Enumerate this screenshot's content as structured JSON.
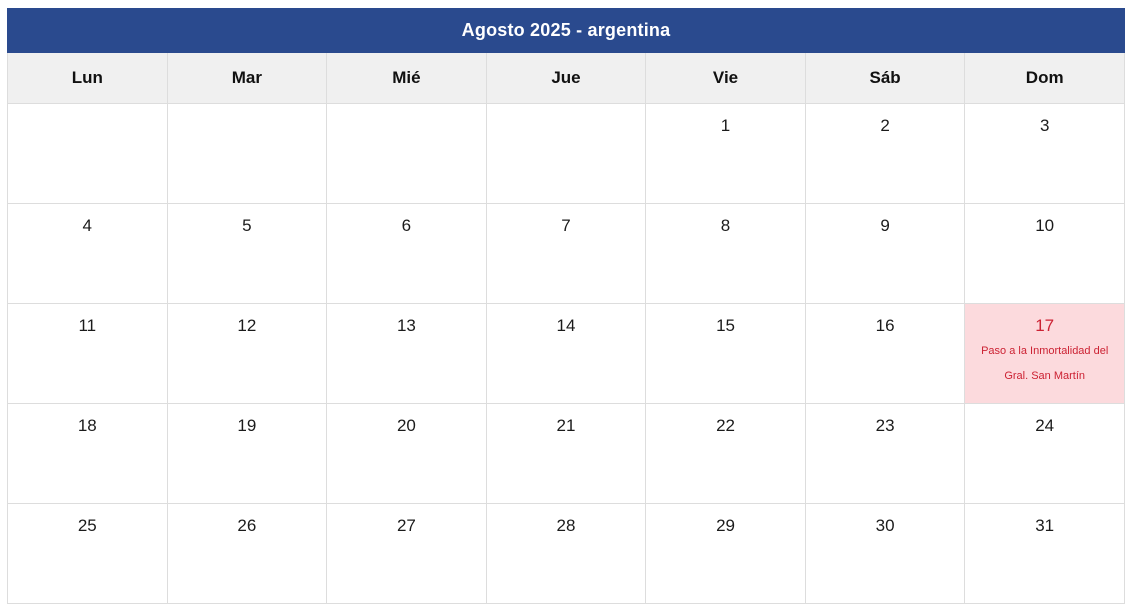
{
  "title": "Agosto 2025 - argentina",
  "colors": {
    "title_bg": "#2a4a8e",
    "title_text": "#ffffff",
    "weekday_bg": "#f0f0f0",
    "weekday_text": "#111111",
    "grid_border": "#dddddd",
    "day_text": "#1b1b1b",
    "holiday_bg": "#fcdadd",
    "holiday_text": "#cc2233"
  },
  "weekdays": [
    "Lun",
    "Mar",
    "Mié",
    "Jue",
    "Vie",
    "Sáb",
    "Dom"
  ],
  "weeks": [
    [
      {
        "day": ""
      },
      {
        "day": ""
      },
      {
        "day": ""
      },
      {
        "day": ""
      },
      {
        "day": "1"
      },
      {
        "day": "2"
      },
      {
        "day": "3"
      }
    ],
    [
      {
        "day": "4"
      },
      {
        "day": "5"
      },
      {
        "day": "6"
      },
      {
        "day": "7"
      },
      {
        "day": "8"
      },
      {
        "day": "9"
      },
      {
        "day": "10"
      }
    ],
    [
      {
        "day": "11"
      },
      {
        "day": "12"
      },
      {
        "day": "13"
      },
      {
        "day": "14"
      },
      {
        "day": "15"
      },
      {
        "day": "16"
      },
      {
        "day": "17",
        "holiday": "Paso a la Inmortalidad del Gral. San Martín"
      }
    ],
    [
      {
        "day": "18"
      },
      {
        "day": "19"
      },
      {
        "day": "20"
      },
      {
        "day": "21"
      },
      {
        "day": "22"
      },
      {
        "day": "23"
      },
      {
        "day": "24"
      }
    ],
    [
      {
        "day": "25"
      },
      {
        "day": "26"
      },
      {
        "day": "27"
      },
      {
        "day": "28"
      },
      {
        "day": "29"
      },
      {
        "day": "30"
      },
      {
        "day": "31"
      }
    ]
  ]
}
